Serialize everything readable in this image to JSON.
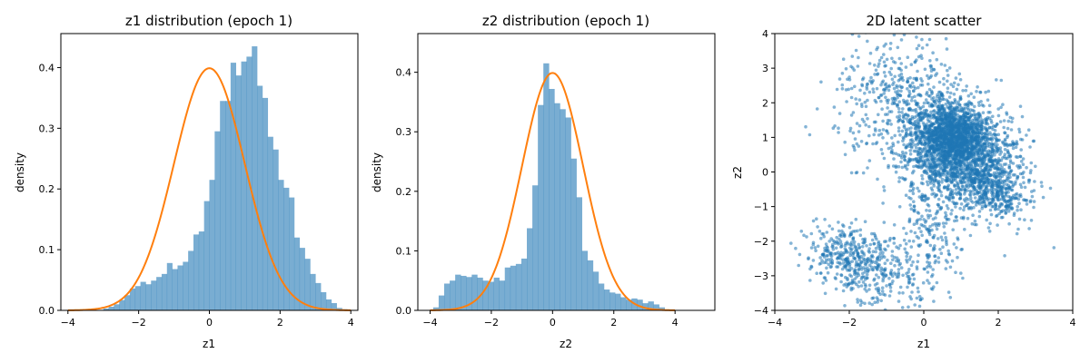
{
  "chart_data": [
    {
      "type": "bar",
      "title": "z1 distribution (epoch 1)",
      "xlabel": "z1",
      "ylabel": "density",
      "xlim": [
        -4.2,
        4.2
      ],
      "ylim": [
        0,
        0.456
      ],
      "xticks": [
        -4,
        -2,
        0,
        2,
        4
      ],
      "yticks": [
        0.0,
        0.1,
        0.2,
        0.3,
        0.4
      ],
      "bar_color": "#1f77b4",
      "bar_alpha": 0.6,
      "bin_start": -3.0,
      "bin_width": 0.15,
      "values": [
        0.003,
        0.006,
        0.01,
        0.017,
        0.025,
        0.036,
        0.04,
        0.047,
        0.043,
        0.049,
        0.055,
        0.06,
        0.078,
        0.068,
        0.074,
        0.08,
        0.098,
        0.125,
        0.13,
        0.18,
        0.215,
        0.295,
        0.345,
        0.345,
        0.408,
        0.387,
        0.41,
        0.418,
        0.435,
        0.37,
        0.35,
        0.286,
        0.265,
        0.215,
        0.202,
        0.186,
        0.12,
        0.103,
        0.085,
        0.06,
        0.045,
        0.03,
        0.018,
        0.012,
        0.004,
        0.002
      ],
      "series": [
        {
          "type": "line",
          "color": "#ff7f0e",
          "function": "standard-normal-pdf",
          "x_range": [
            -4,
            4
          ]
        }
      ]
    },
    {
      "type": "bar",
      "title": "z2 distribution (epoch 1)",
      "xlabel": "z2",
      "ylabel": "density",
      "xlim": [
        -4.4,
        5.3
      ],
      "ylim": [
        0,
        0.465
      ],
      "xticks": [
        -4,
        -2,
        0,
        2,
        4
      ],
      "yticks": [
        0.0,
        0.1,
        0.2,
        0.3,
        0.4
      ],
      "bar_color": "#1f77b4",
      "bar_alpha": 0.6,
      "bin_start": -3.9,
      "bin_width": 0.18,
      "values": [
        0.005,
        0.025,
        0.045,
        0.05,
        0.06,
        0.058,
        0.056,
        0.06,
        0.055,
        0.05,
        0.048,
        0.055,
        0.05,
        0.072,
        0.075,
        0.078,
        0.087,
        0.138,
        0.21,
        0.345,
        0.415,
        0.372,
        0.348,
        0.338,
        0.324,
        0.255,
        0.19,
        0.1,
        0.084,
        0.065,
        0.045,
        0.035,
        0.03,
        0.028,
        0.022,
        0.018,
        0.02,
        0.018,
        0.012,
        0.015,
        0.01,
        0.005
      ],
      "series": [
        {
          "type": "line",
          "color": "#ff7f0e",
          "function": "standard-normal-pdf",
          "x_range": [
            -4,
            4
          ]
        }
      ]
    },
    {
      "type": "scatter",
      "title": "2D latent scatter",
      "xlabel": "z1",
      "ylabel": "z2",
      "xlim": [
        -4,
        4
      ],
      "ylim": [
        -4,
        4
      ],
      "xticks": [
        -4,
        -2,
        0,
        2,
        4
      ],
      "yticks": [
        -4,
        -3,
        -2,
        -1,
        0,
        1,
        2,
        3,
        4
      ],
      "point_color": "#1f77b4",
      "point_alpha": 0.55,
      "clusters": [
        {
          "center": [
            0.9,
            0.6
          ],
          "std": [
            0.75,
            0.7
          ],
          "rotation_deg": -35,
          "count": 1700
        },
        {
          "center": [
            0.7,
            1.1
          ],
          "std": [
            0.45,
            0.45
          ],
          "rotation_deg": 0,
          "count": 900
        },
        {
          "center": [
            -0.6,
            2.1
          ],
          "std": [
            0.9,
            0.9
          ],
          "rotation_deg": 0,
          "count": 450
        },
        {
          "center": [
            1.8,
            -0.5
          ],
          "std": [
            0.55,
            0.45
          ],
          "rotation_deg": -35,
          "count": 450
        },
        {
          "center": [
            -1.7,
            -2.6
          ],
          "std": [
            0.75,
            0.45
          ],
          "rotation_deg": -25,
          "count": 500
        },
        {
          "center": [
            0.1,
            -2.0
          ],
          "std": [
            0.45,
            0.9
          ],
          "rotation_deg": 0,
          "count": 220
        }
      ]
    }
  ]
}
